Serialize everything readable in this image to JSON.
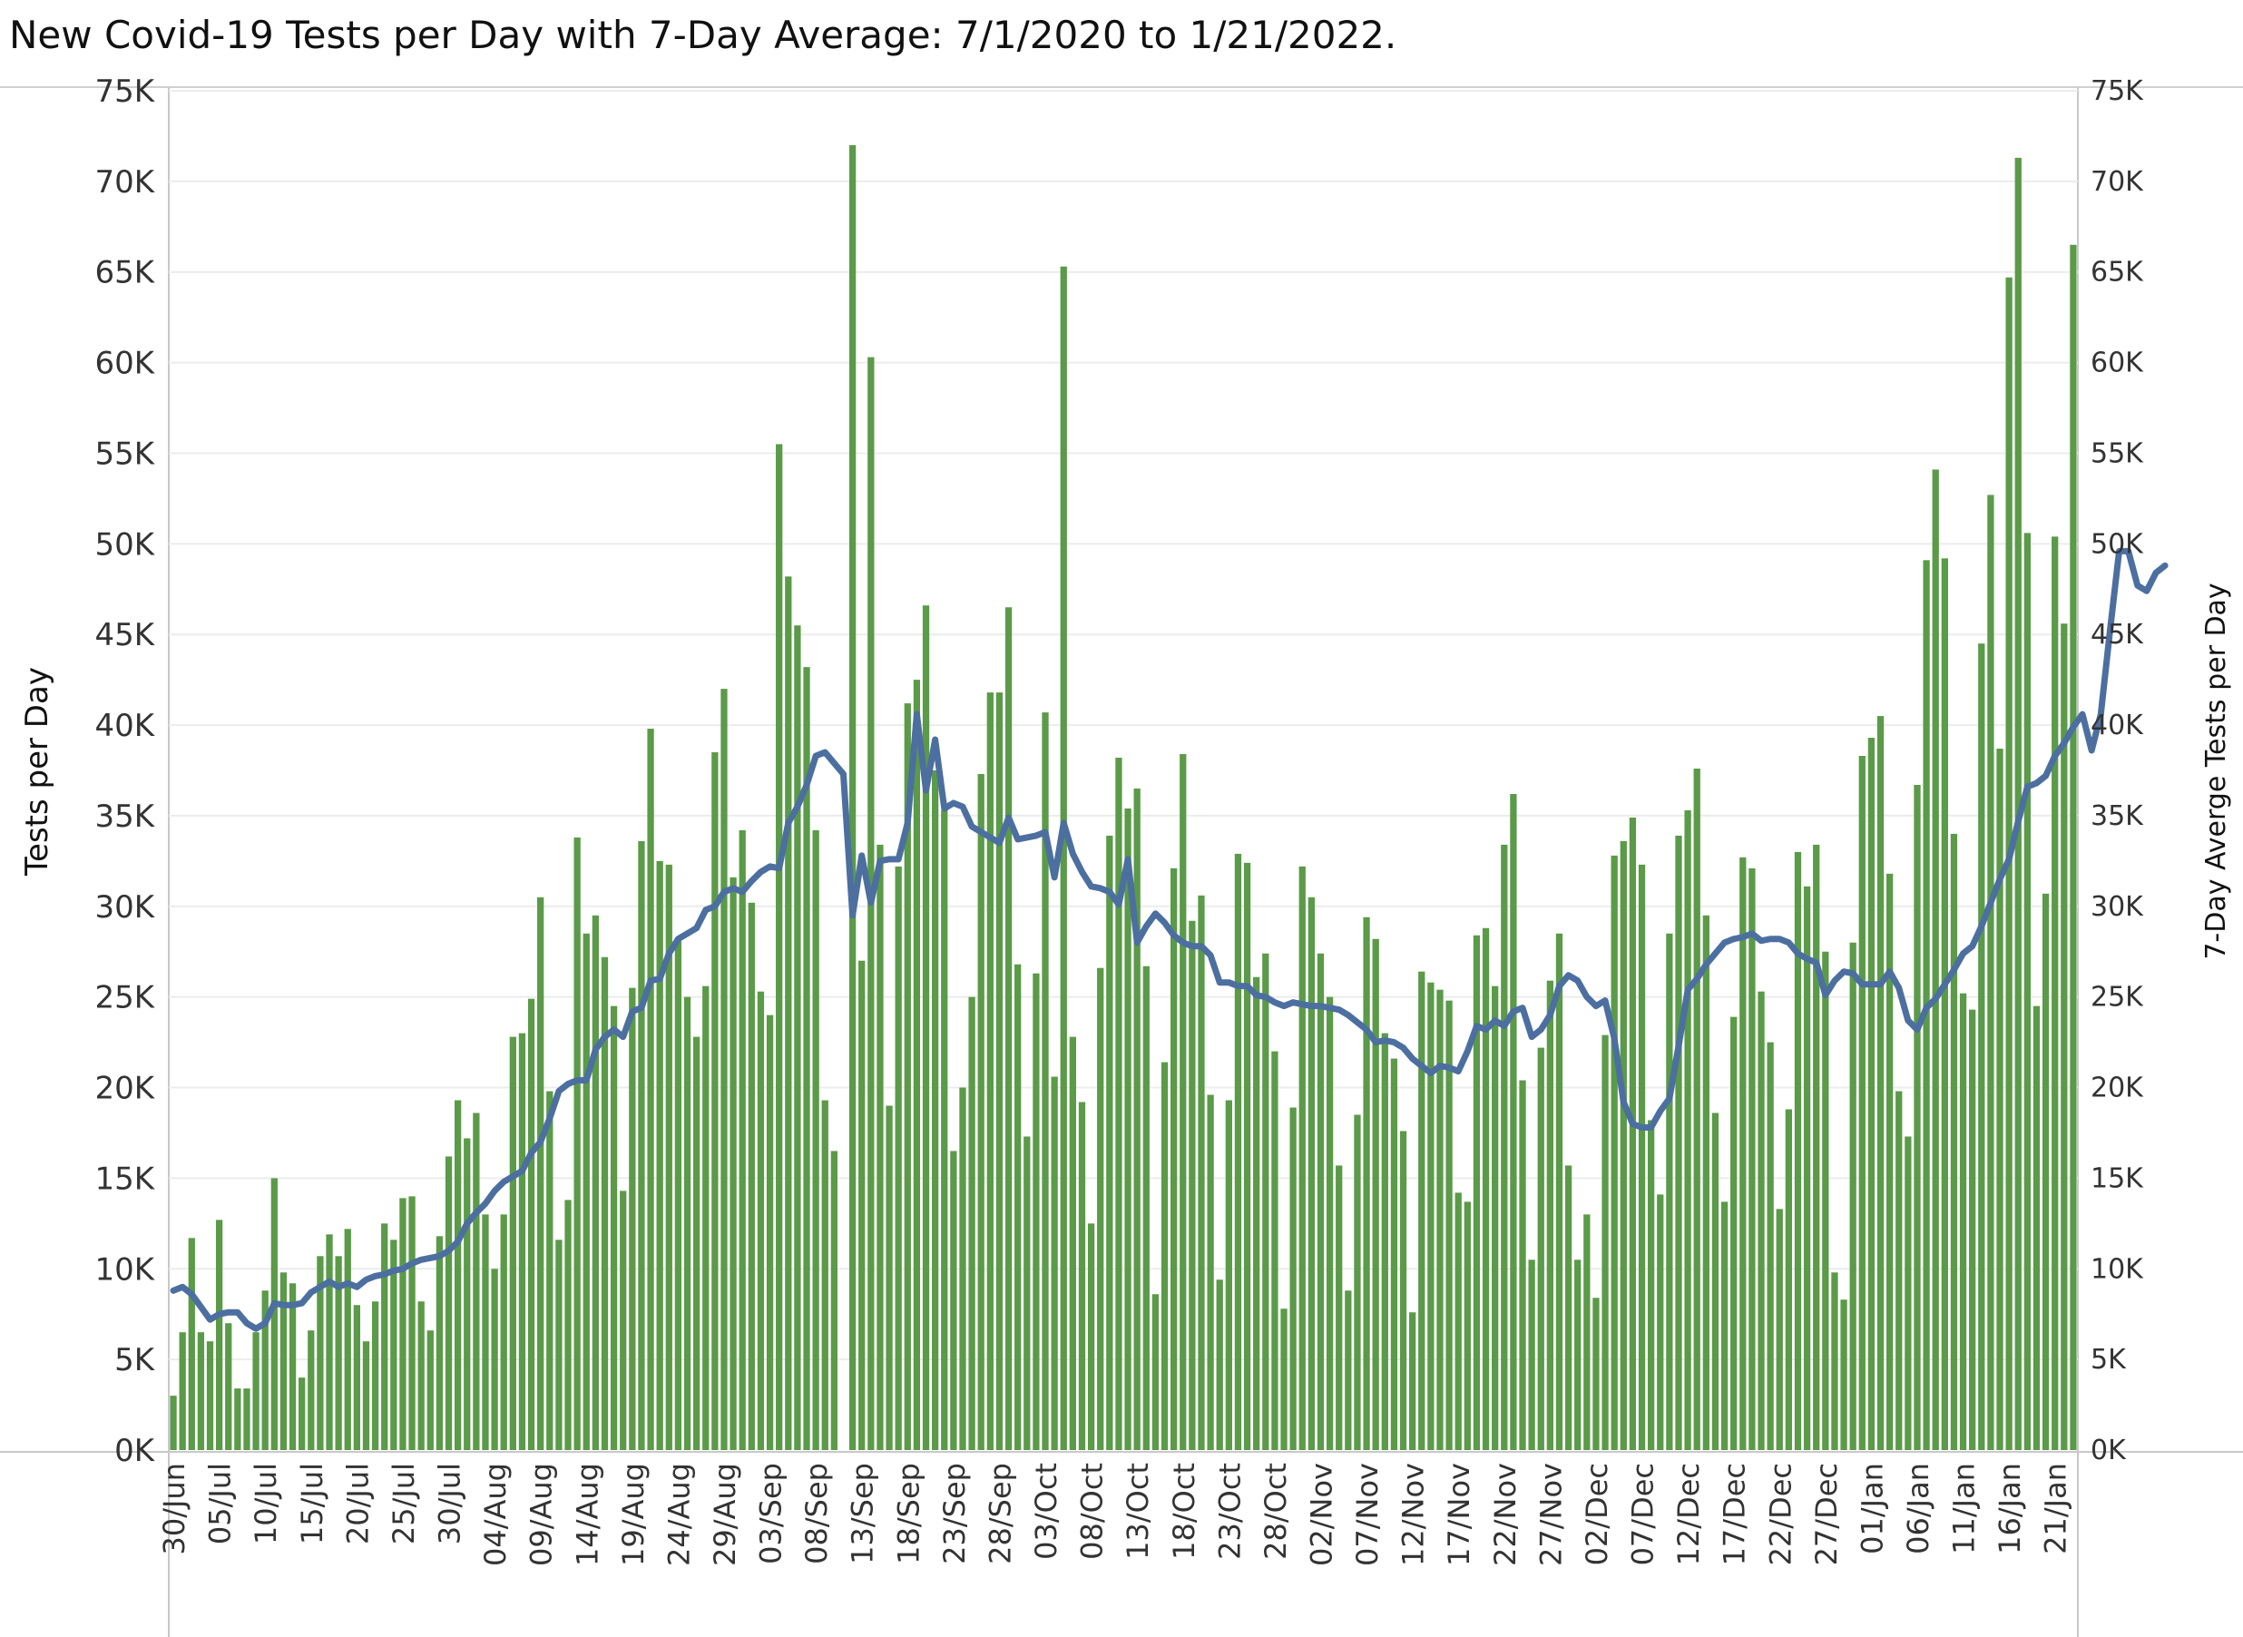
{
  "title": "New Covid-19 Tests per Day with 7-Day Average:  7/1/2020 to 1/21/2022.",
  "chart_data": {
    "type": "bar",
    "title": "New Covid-19 Tests per Day with 7-Day Average:  7/1/2020 to 1/21/2022.",
    "ylabel": "Tests per Day",
    "y2label": "7-Day Averge Tests per Day",
    "ylim": [
      0,
      75000
    ],
    "y_ticks": [
      "0K",
      "5K",
      "10K",
      "15K",
      "20K",
      "25K",
      "30K",
      "35K",
      "40K",
      "45K",
      "50K",
      "55K",
      "60K",
      "65K",
      "70K",
      "75K"
    ],
    "x_ticks": [
      "30/Jun",
      "05/Jul",
      "10/Jul",
      "15/Jul",
      "20/Jul",
      "25/Jul",
      "30/Jul",
      "04/Aug",
      "09/Aug",
      "14/Aug",
      "19/Aug",
      "24/Aug",
      "29/Aug",
      "03/Sep",
      "08/Sep",
      "13/Sep",
      "18/Sep",
      "23/Sep",
      "28/Sep",
      "03/Oct",
      "08/Oct",
      "13/Oct",
      "18/Oct",
      "23/Oct",
      "28/Oct",
      "02/Nov",
      "07/Nov",
      "12/Nov",
      "17/Nov",
      "22/Nov",
      "27/Nov",
      "02/Dec",
      "07/Dec",
      "12/Dec",
      "17/Dec",
      "22/Dec",
      "27/Dec",
      "01/Jan",
      "06/Jan",
      "11/Jan",
      "16/Jan",
      "21/Jan"
    ],
    "bar_color": "#5b9a48",
    "line_color": "#4c6fa0",
    "series": [
      {
        "values": [
          3000,
          6500,
          11700,
          6500,
          6000,
          12700,
          7000,
          3400,
          3400,
          6500,
          8800,
          15000,
          9800,
          9200,
          4000,
          6600,
          10700,
          11900,
          10700,
          12200,
          8000,
          6000,
          8200,
          12500,
          11600,
          13900,
          14000,
          8200,
          6600,
          11800,
          16200,
          19300,
          17200,
          18600,
          13000,
          10000,
          13000,
          22800,
          23000,
          24900,
          30500,
          19800,
          11600,
          13800,
          33800,
          28500,
          29500,
          27200,
          24500,
          14300,
          25500,
          33600,
          39800,
          32500,
          32300,
          28200,
          25000,
          22800,
          25600,
          38500,
          42000,
          31600,
          34200,
          30200,
          25300,
          24000,
          55500,
          48200,
          45500,
          43200,
          34200,
          19300,
          16500,
          0,
          72000,
          27000,
          60300,
          33400,
          19000,
          32200,
          41200,
          42500,
          46600,
          37500,
          35300,
          16500,
          20000,
          25000,
          37300,
          41800,
          41800,
          46500,
          26800,
          17300,
          26300,
          40700,
          20600,
          65300,
          22800,
          19200,
          12500,
          26600,
          33900,
          38200,
          35400,
          36500,
          26700,
          8600,
          21400,
          32100,
          38400,
          29200,
          30600,
          19600,
          9400,
          19300,
          32900,
          32400,
          26100,
          27400,
          22000,
          7800,
          18900,
          32200,
          30500,
          27400,
          25000,
          15700,
          8800,
          18500,
          29400,
          28200,
          23000,
          21600,
          17600,
          7600,
          26400,
          25800,
          25400,
          24800,
          14200,
          13700,
          28400,
          28800,
          25600,
          33400,
          36200,
          20400,
          10500,
          22200,
          25900,
          28500,
          15700,
          10500,
          13000,
          8400,
          22900,
          32800,
          33600,
          34900,
          32300,
          18200,
          14100,
          28500,
          33900,
          35300,
          37600,
          29500,
          18600,
          13700,
          23900,
          32700,
          32100,
          25300,
          22500,
          13300,
          18800,
          33000,
          31100,
          33400,
          27500,
          9800,
          8300,
          28000,
          38300,
          39300,
          40500,
          31800,
          19800,
          17300,
          36700,
          49100,
          54100,
          49200,
          34000,
          25200,
          24300,
          44500,
          52700,
          38700,
          64700,
          71300,
          50600,
          24500,
          30700,
          50400,
          45600,
          66500
        ]
      },
      {
        "values": [
          8800,
          9000,
          8600,
          7900,
          7200,
          7500,
          7600,
          7600,
          7000,
          6700,
          7000,
          8100,
          8000,
          8000,
          8100,
          8700,
          9000,
          9300,
          9000,
          9200,
          9000,
          9400,
          9600,
          9700,
          9900,
          10000,
          10300,
          10500,
          10600,
          10700,
          11000,
          11500,
          12500,
          13100,
          13600,
          14300,
          14800,
          15100,
          15400,
          16400,
          17000,
          18300,
          19800,
          20200,
          20400,
          20400,
          22100,
          22800,
          23200,
          22800,
          24200,
          24400,
          25900,
          26000,
          27400,
          28200,
          28500,
          28800,
          29800,
          30000,
          30800,
          31000,
          30800,
          31400,
          31900,
          32200,
          32100,
          34600,
          35500,
          36700,
          38300,
          38500,
          37900,
          37300,
          29500,
          32800,
          30200,
          32500,
          32600,
          32600,
          34600,
          40600,
          36400,
          39200,
          35400,
          35700,
          35500,
          34400,
          34100,
          33800,
          33500,
          34900,
          33700,
          33800,
          33900,
          34100,
          31600,
          34600,
          32900,
          31900,
          31100,
          31000,
          30800,
          30100,
          32600,
          28000,
          28900,
          29600,
          29100,
          28400,
          28000,
          27800,
          27800,
          27300,
          25800,
          25800,
          25600,
          25600,
          25100,
          25000,
          24700,
          24500,
          24700,
          24600,
          24500,
          24500,
          24400,
          24300,
          24000,
          23600,
          23200,
          22500,
          22600,
          22500,
          22200,
          21600,
          21200,
          20800,
          21200,
          21100,
          20900,
          22000,
          23400,
          23200,
          23700,
          23400,
          24200,
          24400,
          22800,
          23200,
          24000,
          25600,
          26200,
          25900,
          25000,
          24500,
          24800,
          22700,
          19200,
          18000,
          17800,
          17800,
          18700,
          19400,
          22300,
          25400,
          26000,
          26800,
          27400,
          28000,
          28200,
          28300,
          28500,
          28100,
          28200,
          28200,
          28000,
          27400,
          27100,
          26900,
          25100,
          25900,
          26400,
          26300,
          25700,
          25700,
          25700,
          26400,
          25500,
          23700,
          23200,
          24400,
          24900,
          25700,
          26500,
          27400,
          27800,
          28900,
          30200,
          31500,
          32600,
          34700,
          36600,
          36800,
          37200,
          38300,
          39000,
          39900,
          40600,
          38600,
          40600,
          45200,
          49600,
          49600,
          47700,
          47400,
          48400,
          48800
        ]
      }
    ]
  }
}
